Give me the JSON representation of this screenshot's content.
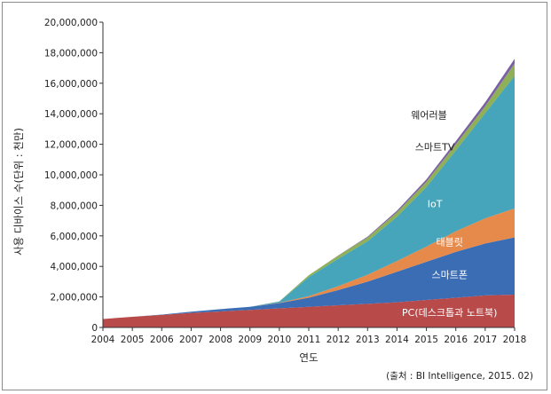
{
  "chart_data": {
    "type": "area",
    "stacked": true,
    "title": "",
    "xlabel": "연도",
    "ylabel": "사용 디바이스 수(단위 : 천만)",
    "source": "(출처 : BI Intelligence, 2015. 02)",
    "x": [
      2004,
      2005,
      2006,
      2007,
      2008,
      2009,
      2010,
      2011,
      2012,
      2013,
      2014,
      2015,
      2016,
      2017,
      2018
    ],
    "ylim": [
      0,
      20000000
    ],
    "y_ticks": [
      "0",
      "2,000,000",
      "4,000,000",
      "6,000,000",
      "8,000,000",
      "10,000,000",
      "12,000,000",
      "14,000,000",
      "16,000,000",
      "18,000,000",
      "20,000,000"
    ],
    "y_tick_values": [
      0,
      2000000,
      4000000,
      6000000,
      8000000,
      10000000,
      12000000,
      14000000,
      16000000,
      18000000,
      20000000
    ],
    "grid": false,
    "series": [
      {
        "name": "PC(데스크톱과 노트북)",
        "color": "#b84a4a",
        "label_color": "#ffffff",
        "values": [
          550000,
          700000,
          820000,
          950000,
          1050000,
          1150000,
          1250000,
          1350000,
          1450000,
          1550000,
          1650000,
          1800000,
          1950000,
          2100000,
          2150000
        ]
      },
      {
        "name": "스마트폰",
        "color": "#3b6db5",
        "label_color": "#ffffff",
        "values": [
          0,
          0,
          20000,
          80000,
          150000,
          200000,
          350000,
          600000,
          1000000,
          1450000,
          2000000,
          2500000,
          3000000,
          3400000,
          3750000
        ]
      },
      {
        "name": "태블릿",
        "color": "#e68a4b",
        "label_color": "#ffffff",
        "values": [
          0,
          0,
          0,
          0,
          0,
          0,
          20000,
          100000,
          250000,
          450000,
          700000,
          1000000,
          1350000,
          1650000,
          1900000
        ]
      },
      {
        "name": "IoT",
        "color": "#46a5ba",
        "label_color": "#ffffff",
        "values": [
          0,
          0,
          0,
          0,
          0,
          0,
          80000,
          1250000,
          1800000,
          2200000,
          2900000,
          3900000,
          5300000,
          6900000,
          8700000
        ]
      },
      {
        "name": "스마트TV",
        "color": "#8fb056",
        "label_color": "#222222",
        "values": [
          0,
          0,
          0,
          0,
          0,
          0,
          10000,
          120000,
          200000,
          250000,
          300000,
          350000,
          400000,
          450000,
          800000
        ]
      },
      {
        "name": "웨어러블",
        "color": "#7b5fa5",
        "label_color": "#222222",
        "values": [
          0,
          0,
          0,
          0,
          0,
          0,
          0,
          0,
          20000,
          50000,
          100000,
          150000,
          200000,
          250000,
          300000
        ]
      }
    ]
  }
}
